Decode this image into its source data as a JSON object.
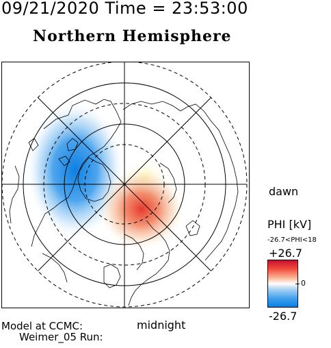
{
  "header": {
    "datetime": "09/21/2020 Time = 23:53:00",
    "hemisphere": "Northern Hemisphere"
  },
  "map": {
    "type": "polar-potential",
    "labels": {
      "dawn": "dawn",
      "midnight": "midnight"
    },
    "potential_max_kv": 26.7,
    "potential_min_kv": -26.7
  },
  "colorbar": {
    "title": "PHI [kV]",
    "range_text": "-26.7<PHI<18",
    "max_label": "+26.7",
    "min_label": "-26.7",
    "zero_label": "0",
    "colors": {
      "high": "#c8102e",
      "mid": "#ffffff",
      "low": "#0c7fe0"
    }
  },
  "footer": {
    "model_label": "Model at CCMC:",
    "run_label": "Weimer_05 Run:"
  }
}
